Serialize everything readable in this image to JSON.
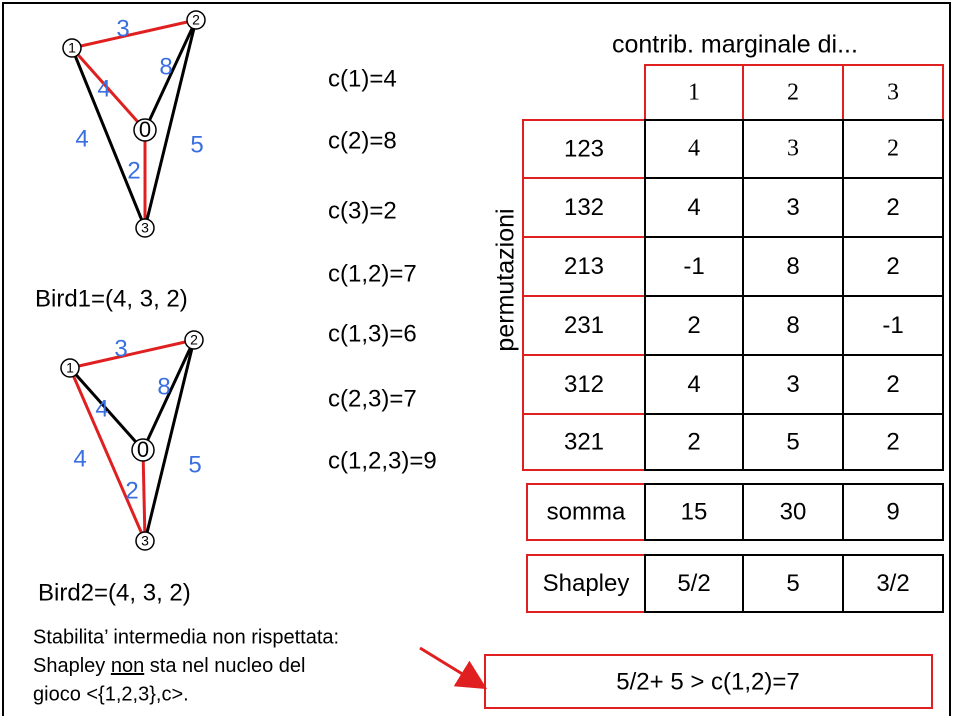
{
  "graphs": [
    {
      "nodes": [
        "1",
        "2",
        "0",
        "3"
      ],
      "edge_labels": [
        "3",
        "4",
        "8",
        "4",
        "2",
        "5"
      ],
      "caption": "Bird1=(4, 3, 2)"
    },
    {
      "nodes": [
        "1",
        "2",
        "0",
        "3"
      ],
      "edge_labels": [
        "3",
        "4",
        "8",
        "4",
        "2",
        "5"
      ],
      "caption": "Bird2=(4, 3, 2)"
    }
  ],
  "costs": [
    "c(1)=4",
    "c(2)=8",
    "c(3)=2",
    "c(1,2)=7",
    "c(1,3)=6",
    "c(2,3)=7",
    "c(1,2,3)=9"
  ],
  "table": {
    "title": "contrib. marginale di...",
    "row_axis_label": "permutazioni",
    "columns": [
      "1",
      "2",
      "3"
    ],
    "rows": [
      {
        "label": "123",
        "cells": [
          "4",
          "3",
          "2"
        ]
      },
      {
        "label": "132",
        "cells": [
          "4",
          "3",
          "2"
        ]
      },
      {
        "label": "213",
        "cells": [
          "-1",
          "8",
          "2"
        ]
      },
      {
        "label": "231",
        "cells": [
          "2",
          "8",
          "-1"
        ]
      },
      {
        "label": "312",
        "cells": [
          "4",
          "3",
          "2"
        ]
      },
      {
        "label": "321",
        "cells": [
          "2",
          "5",
          "2"
        ]
      }
    ],
    "sum": {
      "label": "somma",
      "cells": [
        "15",
        "30",
        "9"
      ]
    },
    "shapley": {
      "label": "Shapley",
      "cells": [
        "5/2",
        "5",
        "3/2"
      ]
    }
  },
  "note": {
    "line1": "Stabilita’ intermedia non rispettata:",
    "line2_before": "Shapley ",
    "line2_underlined": "non",
    "line2_after": " sta nel nucleo del",
    "line3": "gioco <{1,2,3},c>."
  },
  "conclusion": "5/2+ 5 > c(1,2)=7"
}
